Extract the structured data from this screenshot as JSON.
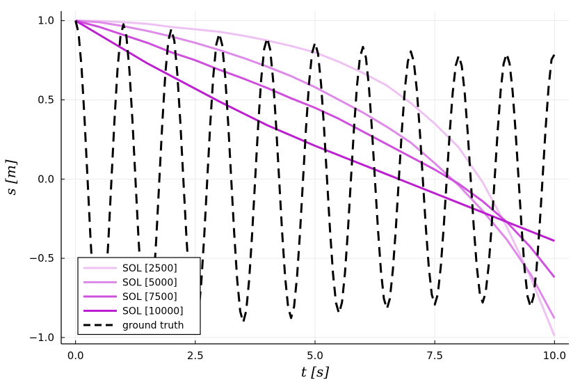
{
  "chart_data": {
    "type": "line",
    "title": "",
    "xlabel": "t [s]",
    "ylabel": "s [m]",
    "xlim": [
      -0.3,
      10.3
    ],
    "ylim": [
      -1.04,
      1.06
    ],
    "xticks": [
      0,
      2.5,
      5,
      7.5,
      10
    ],
    "xtick_labels": [
      "0.0",
      "2.5",
      "5.0",
      "7.5",
      "10.0"
    ],
    "yticks": [
      -1,
      -0.5,
      0,
      0.5,
      1
    ],
    "ytick_labels": [
      "−1.0",
      "−0.5",
      "0.0",
      "0.5",
      "1.0"
    ],
    "grid": true,
    "legend_position": "bottom-left",
    "series": [
      {
        "name": "SOL [2500]",
        "color": "#eec3f3",
        "style": "solid",
        "x": [
          0,
          0.5,
          1,
          1.5,
          2,
          2.5,
          3,
          3.5,
          4,
          4.5,
          5,
          5.5,
          6,
          6.5,
          7,
          7.5,
          8,
          8.5,
          9,
          9.5,
          10
        ],
        "y": [
          1.0,
          0.998,
          0.99,
          0.98,
          0.96,
          0.945,
          0.93,
          0.905,
          0.875,
          0.84,
          0.8,
          0.74,
          0.67,
          0.59,
          0.48,
          0.35,
          0.2,
          -0.02,
          -0.3,
          -0.62,
          -0.99
        ]
      },
      {
        "name": "SOL [5000]",
        "color": "#de8ae8",
        "style": "solid",
        "x": [
          0,
          0.5,
          1,
          1.5,
          2,
          2.5,
          3,
          3.5,
          4,
          4.5,
          5,
          5.5,
          6,
          6.5,
          7,
          7.5,
          8,
          8.5,
          9,
          9.5,
          10
        ],
        "y": [
          1.0,
          0.99,
          0.965,
          0.935,
          0.9,
          0.86,
          0.815,
          0.765,
          0.71,
          0.65,
          0.58,
          0.5,
          0.42,
          0.33,
          0.23,
          0.1,
          -0.04,
          -0.2,
          -0.38,
          -0.6,
          -0.88
        ]
      },
      {
        "name": "SOL [7500]",
        "color": "#cf50dd",
        "style": "solid",
        "x": [
          0,
          0.5,
          1,
          1.5,
          2,
          2.5,
          3,
          3.5,
          4,
          4.5,
          5,
          5.5,
          6,
          6.5,
          7,
          7.5,
          8,
          8.5,
          9,
          9.5,
          10
        ],
        "y": [
          1.0,
          0.96,
          0.91,
          0.86,
          0.8,
          0.75,
          0.69,
          0.635,
          0.575,
          0.51,
          0.45,
          0.38,
          0.3,
          0.22,
          0.14,
          0.06,
          -0.03,
          -0.14,
          -0.27,
          -0.43,
          -0.62
        ]
      },
      {
        "name": "SOL [10000]",
        "color": "#bb1fcf",
        "style": "solid",
        "x": [
          0,
          0.5,
          1,
          1.5,
          2,
          2.5,
          3,
          3.5,
          4,
          4.5,
          5,
          5.5,
          6,
          6.5,
          7,
          7.5,
          8,
          8.5,
          9,
          9.5,
          10
        ],
        "y": [
          1.0,
          0.91,
          0.82,
          0.73,
          0.65,
          0.57,
          0.49,
          0.415,
          0.34,
          0.275,
          0.21,
          0.15,
          0.09,
          0.03,
          -0.03,
          -0.09,
          -0.15,
          -0.21,
          -0.27,
          -0.33,
          -0.39
        ]
      },
      {
        "name": "ground truth",
        "color": "#000000",
        "style": "dashed",
        "x": [
          0,
          0.0625,
          0.125,
          0.1875,
          0.25,
          0.3125,
          0.375,
          0.4375,
          0.5,
          0.5625,
          0.625,
          0.6875,
          0.75,
          0.8125,
          0.875,
          0.9375,
          1.0,
          1.0625,
          1.125,
          1.1875,
          1.25,
          1.3125,
          1.375,
          1.4375,
          1.5,
          1.5625,
          1.625,
          1.6875,
          1.75,
          1.8125,
          1.875,
          1.9375,
          2.0,
          2.0625,
          2.125,
          2.1875,
          2.25,
          2.3125,
          2.375,
          2.4375,
          2.5,
          2.5625,
          2.625,
          2.6875,
          2.75,
          2.8125,
          2.875,
          2.9375,
          3.0,
          3.0625,
          3.125,
          3.1875,
          3.25,
          3.3125,
          3.375,
          3.4375,
          3.5,
          3.5625,
          3.625,
          3.6875,
          3.75,
          3.8125,
          3.875,
          3.9375,
          4.0,
          4.0625,
          4.125,
          4.1875,
          4.25,
          4.3125,
          4.375,
          4.4375,
          4.5,
          4.5625,
          4.625,
          4.6875,
          4.75,
          4.8125,
          4.875,
          4.9375,
          5.0,
          5.0625,
          5.125,
          5.1875,
          5.25,
          5.3125,
          5.375,
          5.4375,
          5.5,
          5.5625,
          5.625,
          5.6875,
          5.75,
          5.8125,
          5.875,
          5.9375,
          6.0,
          6.0625,
          6.125,
          6.1875,
          6.25,
          6.3125,
          6.375,
          6.4375,
          6.5,
          6.5625,
          6.625,
          6.6875,
          6.75,
          6.8125,
          6.875,
          6.9375,
          7.0,
          7.0625,
          7.125,
          7.1875,
          7.25,
          7.3125,
          7.375,
          7.4375,
          7.5,
          7.5625,
          7.625,
          7.6875,
          7.75,
          7.8125,
          7.875,
          7.9375,
          8.0,
          8.0625,
          8.125,
          8.1875,
          8.25,
          8.3125,
          8.375,
          8.4375,
          8.5,
          8.5625,
          8.625,
          8.6875,
          8.75,
          8.8125,
          8.875,
          8.9375,
          9.0,
          9.0625,
          9.125,
          9.1875,
          9.25,
          9.3125,
          9.375,
          9.4375,
          9.5,
          9.5625,
          9.625,
          9.6875,
          9.75,
          9.8125,
          9.875,
          9.9375,
          10.0
        ],
        "y": [
          1.0,
          0.922,
          0.705,
          0.38,
          0.001,
          -0.378,
          -0.7,
          -0.916,
          -0.992,
          -0.913,
          -0.695,
          -0.375,
          -0.0,
          0.372,
          0.689,
          0.902,
          0.977,
          0.899,
          0.685,
          0.369,
          0.001,
          -0.366,
          -0.678,
          -0.889,
          -0.963,
          -0.886,
          -0.674,
          -0.364,
          -0.0,
          0.36,
          0.668,
          0.875,
          0.948,
          0.872,
          0.664,
          0.358,
          0.001,
          -0.354,
          -0.657,
          -0.861,
          -0.934,
          -0.859,
          -0.654,
          -0.353,
          -0.0,
          0.348,
          0.647,
          0.848,
          0.92,
          0.845,
          0.644,
          0.347,
          0.001,
          -0.343,
          -0.637,
          -0.834,
          -0.905,
          -0.832,
          -0.634,
          -0.342,
          -0.0,
          0.337,
          0.627,
          0.821,
          0.891,
          0.819,
          0.624,
          0.337,
          0.001,
          -0.332,
          -0.616,
          -0.807,
          -0.877,
          -0.805,
          -0.614,
          -0.332,
          -0.0,
          0.326,
          0.606,
          0.794,
          0.862,
          0.792,
          0.604,
          0.326,
          0.001,
          -0.32,
          -0.596,
          -0.781,
          -0.848,
          -0.779,
          -0.593,
          -0.321,
          -0.0,
          0.316,
          0.586,
          0.768,
          0.834,
          0.767,
          0.584,
          0.316,
          0.001,
          -0.31,
          -0.576,
          -0.755,
          -0.82,
          -0.754,
          -0.574,
          -0.311,
          -0.0,
          0.305,
          0.566,
          0.742,
          0.806,
          0.741,
          0.564,
          0.305,
          0.001,
          -0.3,
          -0.556,
          -0.729,
          -0.792,
          -0.728,
          -0.555,
          -0.3,
          -0.0,
          0.296,
          0.547,
          0.717,
          0.779,
          0.716,
          0.545,
          0.295,
          0.0,
          -0.295,
          -0.545,
          -0.716,
          -0.779,
          -0.717,
          -0.547,
          -0.296,
          -0.0,
          0.3,
          0.555,
          0.728,
          0.792,
          0.729,
          0.556,
          0.3,
          0.001,
          -0.305,
          -0.564,
          -0.741,
          -0.806,
          -0.742,
          -0.566,
          -0.305,
          -0.0,
          0.311,
          0.574,
          0.754,
          0.787
        ]
      }
    ]
  }
}
